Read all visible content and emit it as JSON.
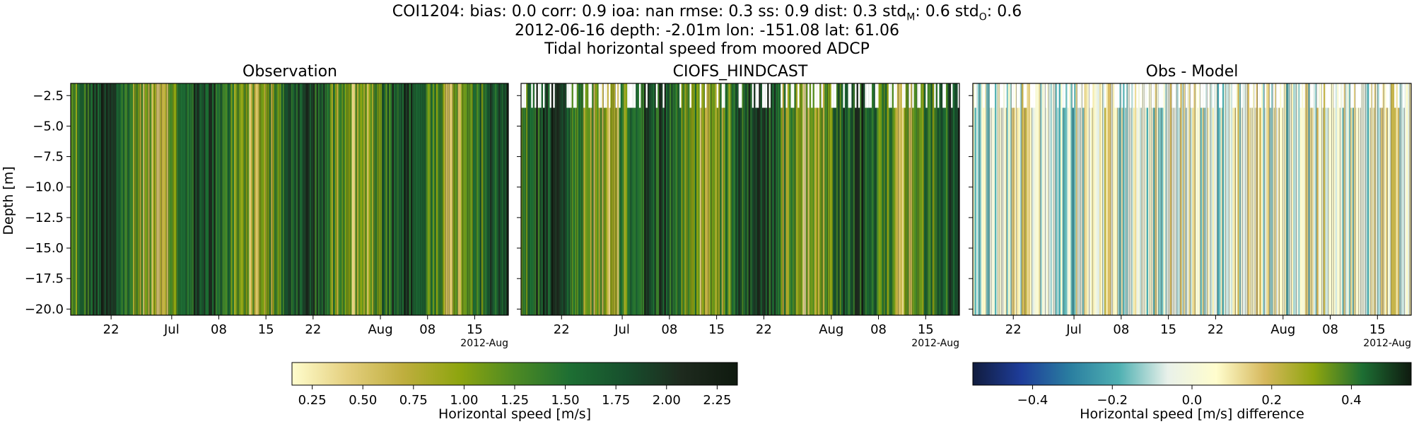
{
  "header": {
    "line1_pre": "COI1204: bias: 0.0  corr: 0.9  ioa: nan  rmse: 0.3  ss: 0.9  dist: 0.3  std",
    "line1_sub1": "M",
    "line1_mid": ": 0.6  std",
    "line1_sub2": "O",
    "line1_post": ": 0.6",
    "line2": "2012-06-16 depth: -2.01m lon: -151.08 lat: 61.06",
    "line3": "Tidal horizontal speed from moored ADCP"
  },
  "chart_data": [
    {
      "type": "heatmap",
      "title": "Observation",
      "xlabel": "",
      "ylabel": "Depth [m]",
      "xlim": [
        "2012-06-16",
        "2012-08-20"
      ],
      "ylim": [
        -20.5,
        -1.5
      ],
      "x_tick_labels": [
        "22",
        "Jul",
        "08",
        "15",
        "22",
        "Aug",
        "08",
        "15"
      ],
      "x_tick_dates": [
        "2012-06-22",
        "2012-07-01",
        "2012-07-08",
        "2012-07-15",
        "2012-07-22",
        "2012-08-01",
        "2012-08-08",
        "2012-08-15"
      ],
      "x_offset_label": "2012-Aug",
      "y_ticks": [
        -2.5,
        -5.0,
        -7.5,
        -10.0,
        -12.5,
        -15.0,
        -17.5,
        -20.0
      ],
      "y_tick_labels": [
        "−2.5",
        "−5.0",
        "−7.5",
        "−10.0",
        "−12.5",
        "−15.0",
        "−17.5",
        "−20.0"
      ],
      "colorbar": {
        "label": "Horizontal speed [m/s]",
        "range": [
          0.15,
          2.35
        ],
        "ticks": [
          "0.25",
          "0.50",
          "0.75",
          "1.00",
          "1.25",
          "1.50",
          "1.75",
          "2.00",
          "2.25"
        ],
        "tick_values": [
          0.25,
          0.5,
          0.75,
          1.0,
          1.25,
          1.5,
          1.75,
          2.0,
          2.25
        ]
      },
      "colormap": "speed"
    },
    {
      "type": "heatmap",
      "title": "CIOFS_HINDCAST",
      "xlim": [
        "2012-06-16",
        "2012-08-20"
      ],
      "ylim": [
        -20.5,
        -1.5
      ],
      "x_tick_labels": [
        "22",
        "Jul",
        "08",
        "15",
        "22",
        "Aug",
        "08",
        "15"
      ],
      "x_tick_dates": [
        "2012-06-22",
        "2012-07-01",
        "2012-07-08",
        "2012-07-15",
        "2012-07-22",
        "2012-08-01",
        "2012-08-08",
        "2012-08-15"
      ],
      "x_offset_label": "2012-Aug",
      "colorbar": "shared with Observation",
      "colormap": "speed"
    },
    {
      "type": "heatmap",
      "title": "Obs - Model",
      "xlim": [
        "2012-06-16",
        "2012-08-20"
      ],
      "ylim": [
        -20.5,
        -1.5
      ],
      "x_tick_labels": [
        "22",
        "Jul",
        "08",
        "15",
        "22",
        "Aug",
        "08",
        "15"
      ],
      "x_tick_dates": [
        "2012-06-22",
        "2012-07-01",
        "2012-07-08",
        "2012-07-15",
        "2012-07-22",
        "2012-08-01",
        "2012-08-08",
        "2012-08-15"
      ],
      "x_offset_label": "2012-Aug",
      "colorbar": {
        "label": "Horizontal speed [m/s] difference",
        "range": [
          -0.55,
          0.55
        ],
        "ticks": [
          "−0.4",
          "−0.2",
          "0.0",
          "0.2",
          "0.4"
        ],
        "tick_values": [
          -0.4,
          -0.2,
          0.0,
          0.2,
          0.4
        ]
      },
      "colormap": "delta"
    }
  ],
  "colormaps": {
    "speed": [
      "#fffdcd",
      "#e4cf7e",
      "#bfae3e",
      "#8ea50f",
      "#4d8a23",
      "#1d6e33",
      "#174f2d",
      "#1e2a1e",
      "#0f1a0f"
    ],
    "delta": [
      "#111c3e",
      "#1e3d9a",
      "#2a7ea0",
      "#4fb0b2",
      "#e9f1ea",
      "#fffdcd",
      "#d6b85c",
      "#8ea50f",
      "#1d6e33",
      "#0f1a0f"
    ]
  },
  "colors": {
    "frame": "#000000",
    "background": "#ffffff"
  }
}
